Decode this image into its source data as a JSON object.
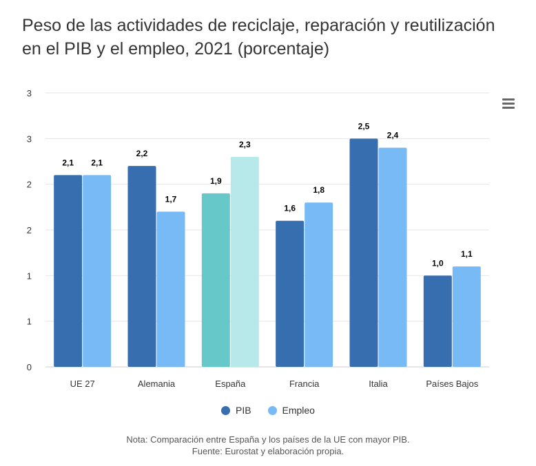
{
  "title": "Peso de las actividades de reciclaje, reparación y reutilización en el PIB y el empleo, 2021 (porcentaje)",
  "menu_icon": "hamburger-menu-icon",
  "note": "Nota: Comparación entre España y los países de la UE con mayor PIB.",
  "source": "Fuente: Eurostat y elaboración propia.",
  "chart_data": {
    "type": "bar",
    "title": "Peso de las actividades de reciclaje, reparación y reutilización en el PIB y el empleo, 2021 (porcentaje)",
    "categories": [
      "UE 27",
      "Alemania",
      "España",
      "Francia",
      "Italia",
      "Países Bajos"
    ],
    "series": [
      {
        "name": "PIB",
        "color": "#376eb0",
        "values": [
          2.1,
          2.2,
          1.9,
          1.6,
          2.5,
          1.0
        ],
        "labels": [
          "2,1",
          "2,2",
          "1,9",
          "1,6",
          "2,5",
          "1,0"
        ]
      },
      {
        "name": "Empleo",
        "color": "#77baf5",
        "values": [
          2.1,
          1.7,
          2.3,
          1.8,
          2.4,
          1.1
        ],
        "labels": [
          "2,1",
          "1,7",
          "2,3",
          "1,8",
          "2,4",
          "1,1"
        ]
      }
    ],
    "highlight": {
      "category": "España",
      "colors": [
        "#67c8c9",
        "#b7e9ea"
      ]
    },
    "ylim": [
      0,
      3
    ],
    "yticks": [
      0,
      0.5,
      1,
      1.5,
      2,
      2.5,
      3
    ],
    "ytick_labels": [
      "0",
      "1",
      "1",
      "2",
      "2",
      "3",
      "3"
    ],
    "grid": true,
    "legend": "bottom"
  }
}
